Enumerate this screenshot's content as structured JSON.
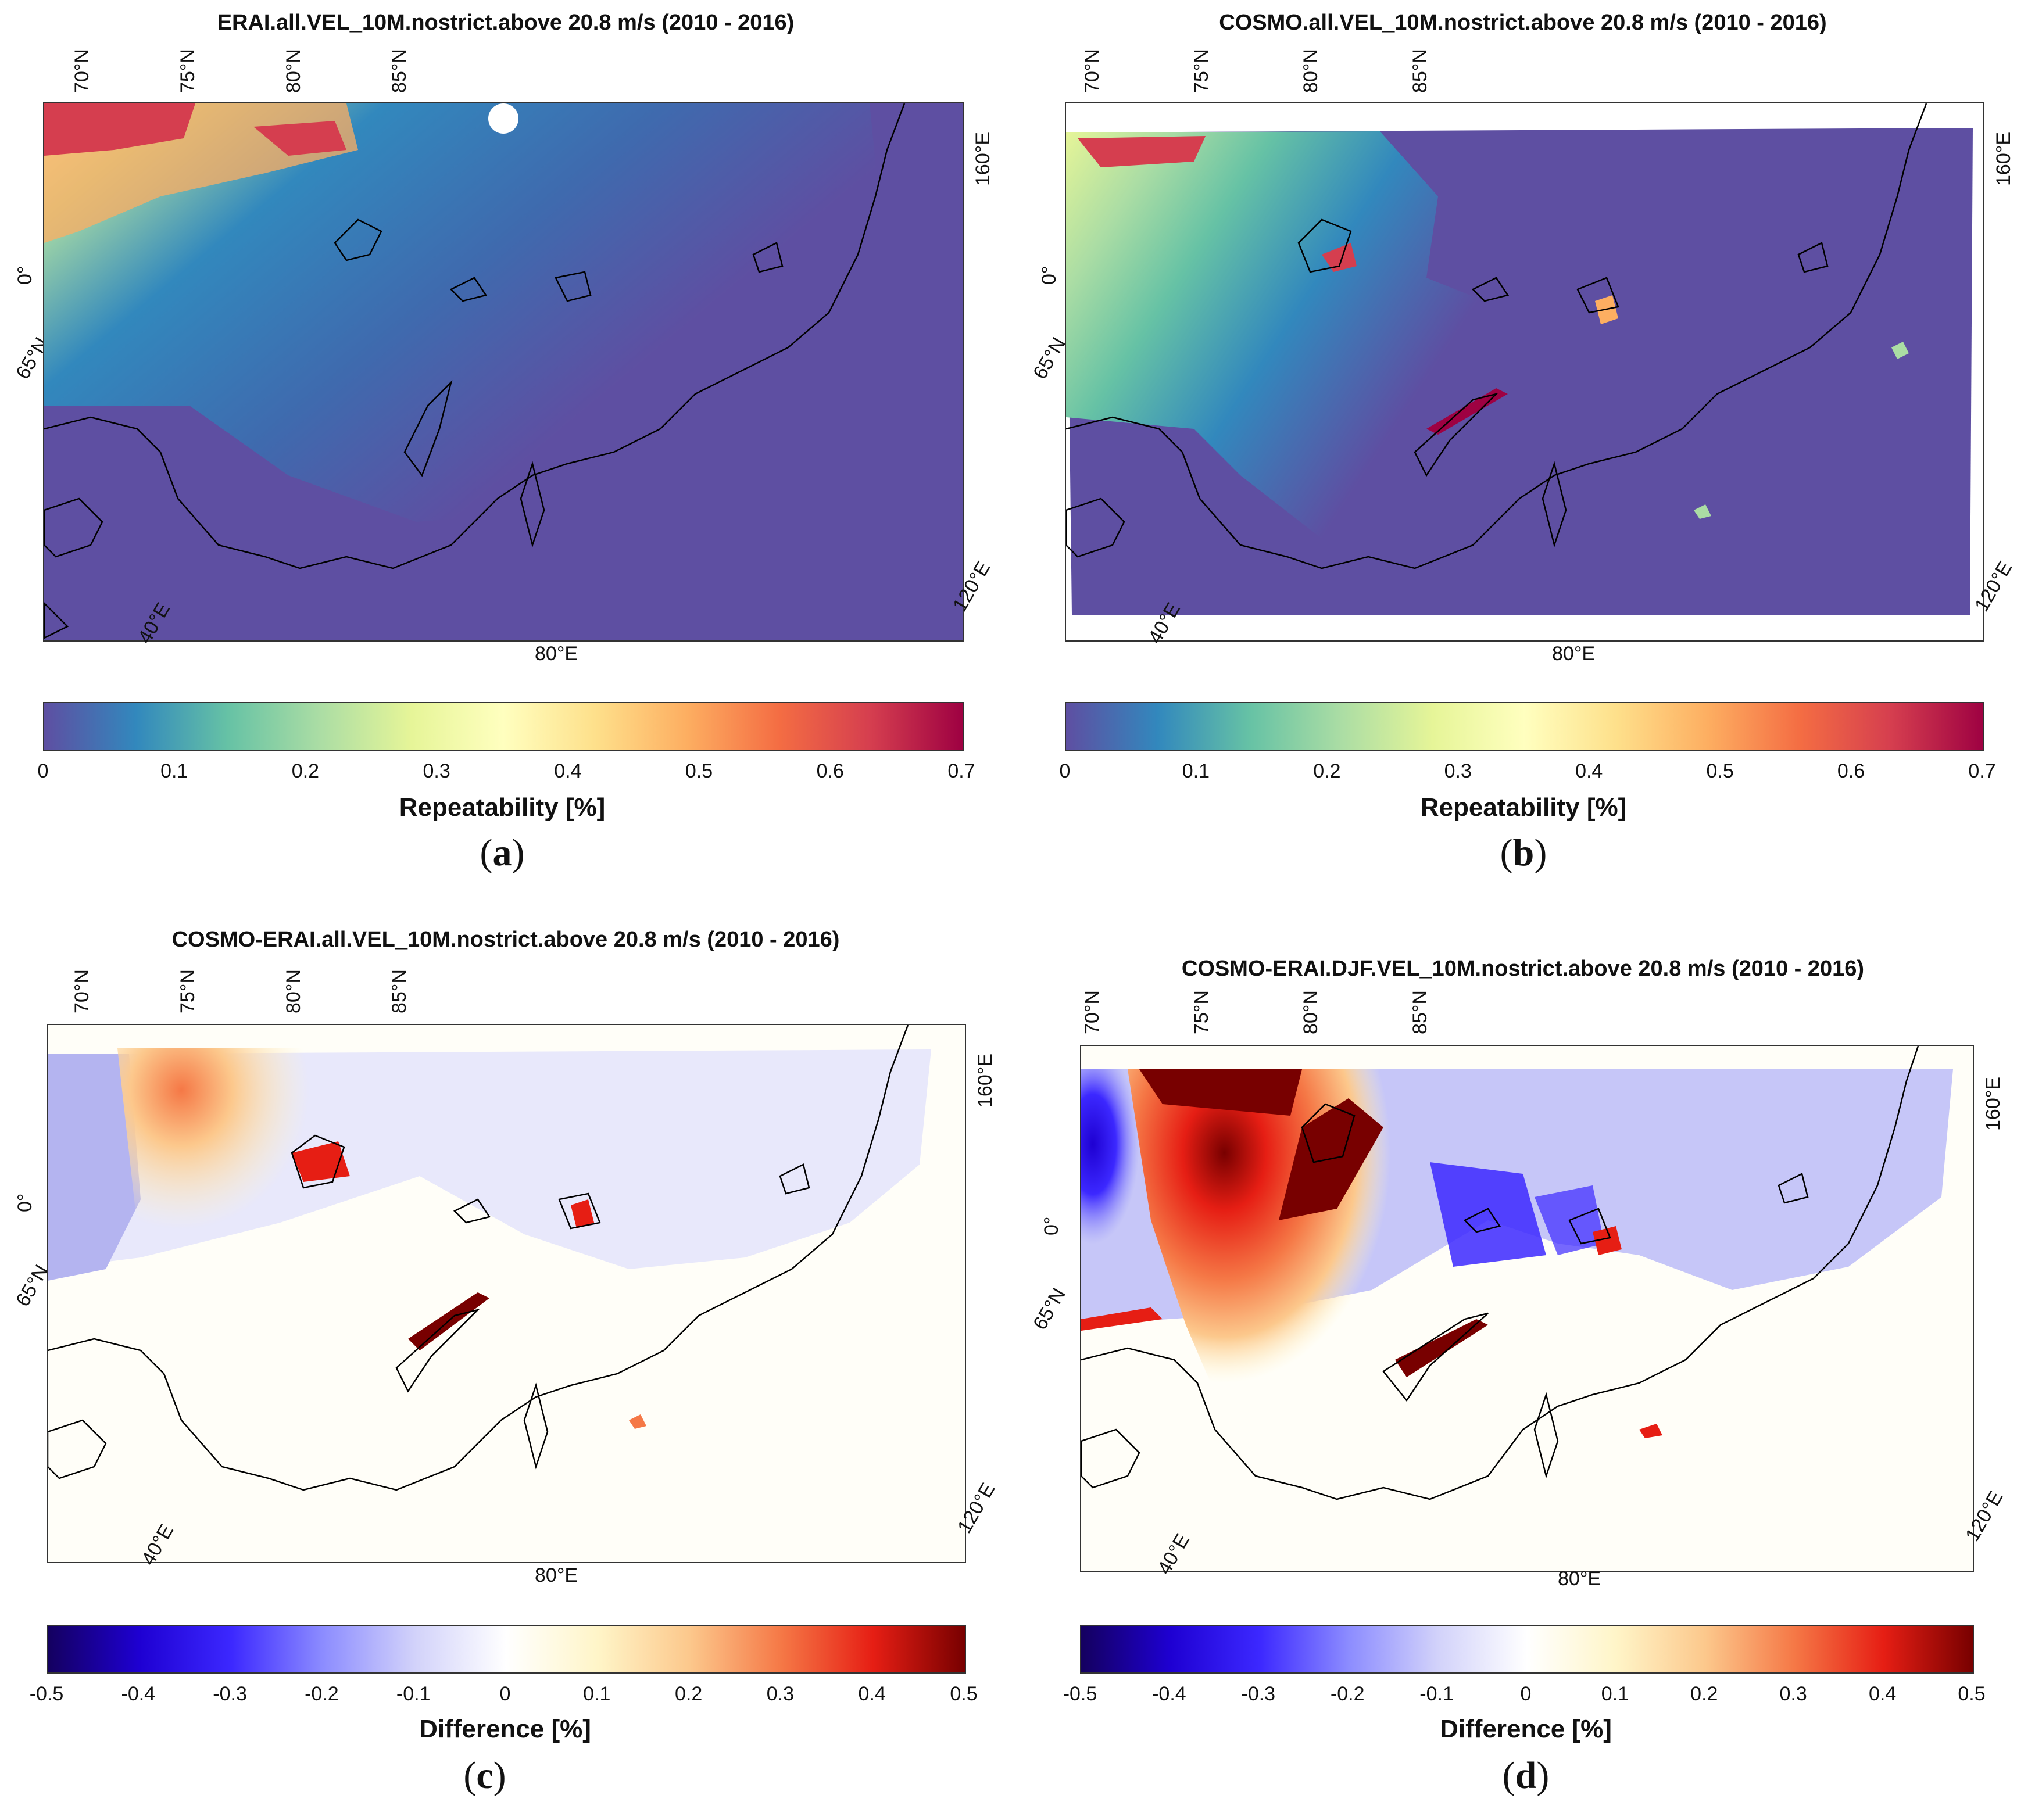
{
  "panels": [
    {
      "letter": "a",
      "title": "ERAI.all.VEL_10M.nostrict.above 20.8 m/s  (2010 - 2016)",
      "lat_labels": [
        "70°N",
        "75°N",
        "80°N",
        "85°N"
      ],
      "edge_labels": [
        "0°",
        "65°N"
      ],
      "lon_labels": [
        "40°E",
        "80°E",
        "120°E",
        "160°E"
      ],
      "colorbar": {
        "label": "Repeatability [%]",
        "ticks": [
          "0",
          "0.1",
          "0.2",
          "0.3",
          "0.4",
          "0.5",
          "0.6",
          "0.7"
        ],
        "colors": [
          "#5e4fa2",
          "#3288bd",
          "#66c2a5",
          "#abdda4",
          "#e6f598",
          "#ffffbf",
          "#fee08b",
          "#fdae61",
          "#f46d43",
          "#d53e4f",
          "#9e0142"
        ]
      }
    },
    {
      "letter": "b",
      "title": "COSMO.all.VEL_10M.nostrict.above 20.8 m/s  (2010 - 2016)",
      "lat_labels": [
        "70°N",
        "75°N",
        "80°N",
        "85°N"
      ],
      "edge_labels": [
        "0°",
        "65°N"
      ],
      "lon_labels": [
        "40°E",
        "80°E",
        "120°E",
        "160°E"
      ],
      "colorbar": {
        "label": "Repeatability [%]",
        "ticks": [
          "0",
          "0.1",
          "0.2",
          "0.3",
          "0.4",
          "0.5",
          "0.6",
          "0.7"
        ],
        "colors": [
          "#5e4fa2",
          "#3288bd",
          "#66c2a5",
          "#abdda4",
          "#e6f598",
          "#ffffbf",
          "#fee08b",
          "#fdae61",
          "#f46d43",
          "#d53e4f",
          "#9e0142"
        ]
      }
    },
    {
      "letter": "c",
      "title": "COSMO-ERAI.all.VEL_10M.nostrict.above 20.8 m/s  (2010 - 2016)",
      "lat_labels": [
        "70°N",
        "75°N",
        "80°N",
        "85°N"
      ],
      "edge_labels": [
        "0°",
        "65°N"
      ],
      "lon_labels": [
        "40°E",
        "80°E",
        "120°E",
        "160°E"
      ],
      "colorbar": {
        "label": "Difference [%]",
        "ticks": [
          "-0.5",
          "-0.4",
          "-0.3",
          "-0.2",
          "-0.1",
          "0",
          "0.1",
          "0.2",
          "0.3",
          "0.4",
          "0.5"
        ],
        "colors": [
          "#14005f",
          "#1e00d2",
          "#3c28ff",
          "#8c8cff",
          "#d2d2fa",
          "#ffffff",
          "#fff5c8",
          "#fcc88c",
          "#f57846",
          "#e61e14",
          "#780000"
        ]
      }
    },
    {
      "letter": "d",
      "title": "COSMO-ERAI.DJF.VEL_10M.nostrict.above 20.8 m/s  (2010 - 2016)",
      "lat_labels": [
        "70°N",
        "75°N",
        "80°N",
        "85°N"
      ],
      "edge_labels": [
        "0°",
        "65°N"
      ],
      "lon_labels": [
        "40°E",
        "80°E",
        "120°E",
        "160°E"
      ],
      "colorbar": {
        "label": "Difference [%]",
        "ticks": [
          "-0.5",
          "-0.4",
          "-0.3",
          "-0.2",
          "-0.1",
          "0",
          "0.1",
          "0.2",
          "0.3",
          "0.4",
          "0.5"
        ],
        "colors": [
          "#14005f",
          "#1e00d2",
          "#3c28ff",
          "#8c8cff",
          "#d2d2fa",
          "#ffffff",
          "#fff5c8",
          "#fcc88c",
          "#f57846",
          "#e61e14",
          "#780000"
        ]
      }
    }
  ]
}
